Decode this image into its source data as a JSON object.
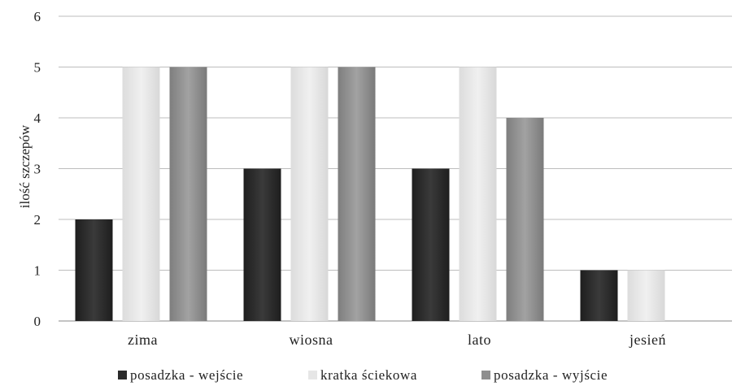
{
  "chart_data": {
    "type": "bar",
    "categories": [
      "zima",
      "wiosna",
      "lato",
      "jesień"
    ],
    "series": [
      {
        "name": "posadzka - wejście",
        "values": [
          2,
          3,
          3,
          1
        ],
        "color": "#2b2b2b"
      },
      {
        "name": "kratka ściekowa",
        "values": [
          5,
          5,
          5,
          1
        ],
        "color": "#e6e6e6"
      },
      {
        "name": "posadzka - wyjście",
        "values": [
          5,
          5,
          4,
          0
        ],
        "color": "#8e8e8e"
      }
    ],
    "ylabel": "ilość szczepów",
    "xlabel": "",
    "ylim": [
      0,
      6
    ],
    "yticks": [
      0,
      1,
      2,
      3,
      4,
      5,
      6
    ],
    "grid": true,
    "legend_position": "bottom"
  }
}
